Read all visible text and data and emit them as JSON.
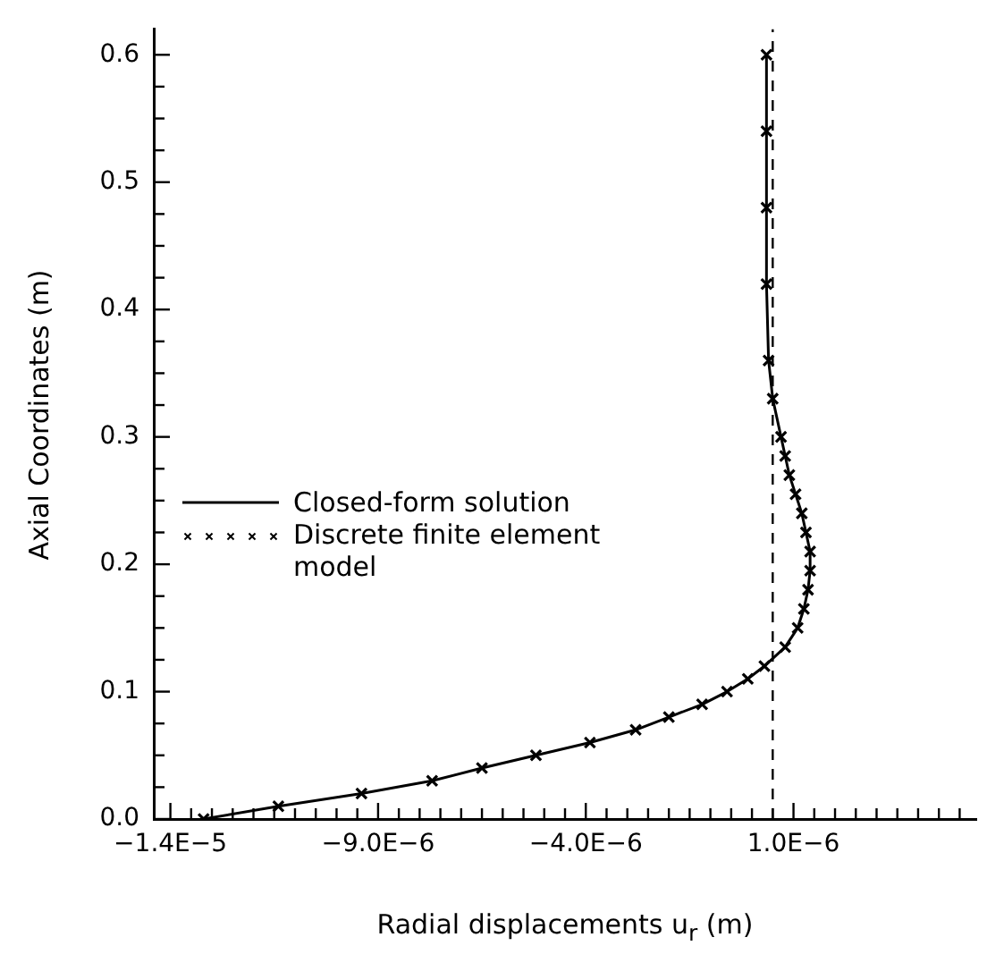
{
  "chart_data": {
    "type": "line",
    "xlabel": "Radial displacements u$_{r}$ (m)",
    "ylabel": "Axial Coordinates (m)",
    "xlim": [
      -1.44e-05,
      5.4e-06
    ],
    "ylim": [
      0,
      0.62
    ],
    "xticks": [
      {
        "value": -1.4e-05,
        "label": "−1.4E−5"
      },
      {
        "value": -1.35e-05,
        "label": null
      },
      {
        "value": -1.3e-05,
        "label": null
      },
      {
        "value": -1.25e-05,
        "label": null
      },
      {
        "value": -1.2e-05,
        "label": null
      },
      {
        "value": -1.15e-05,
        "label": null
      },
      {
        "value": -1.1e-05,
        "label": null
      },
      {
        "value": -1.05e-05,
        "label": null
      },
      {
        "value": -1e-05,
        "label": null
      },
      {
        "value": -9.5e-06,
        "label": null
      },
      {
        "value": -9e-06,
        "label": "−9.0E−6"
      },
      {
        "value": -8.5e-06,
        "label": null
      },
      {
        "value": -8e-06,
        "label": null
      },
      {
        "value": -7.5e-06,
        "label": null
      },
      {
        "value": -7e-06,
        "label": null
      },
      {
        "value": -6.5e-06,
        "label": null
      },
      {
        "value": -6e-06,
        "label": null
      },
      {
        "value": -5.5e-06,
        "label": null
      },
      {
        "value": -5e-06,
        "label": null
      },
      {
        "value": -4.5e-06,
        "label": null
      },
      {
        "value": -4e-06,
        "label": "−4.0E−6"
      },
      {
        "value": -3.5e-06,
        "label": null
      },
      {
        "value": -3e-06,
        "label": null
      },
      {
        "value": -2.5e-06,
        "label": null
      },
      {
        "value": -2e-06,
        "label": null
      },
      {
        "value": -1.5e-06,
        "label": null
      },
      {
        "value": -1e-06,
        "label": null
      },
      {
        "value": -5e-07,
        "label": null
      },
      {
        "value": 0,
        "label": null
      },
      {
        "value": 5e-07,
        "label": null
      },
      {
        "value": 1e-06,
        "label": "1.0E−6"
      },
      {
        "value": 1.5e-06,
        "label": null
      },
      {
        "value": 2e-06,
        "label": null
      },
      {
        "value": 2.5e-06,
        "label": null
      },
      {
        "value": 3e-06,
        "label": null
      },
      {
        "value": 3.5e-06,
        "label": null
      },
      {
        "value": 4e-06,
        "label": null
      },
      {
        "value": 4.5e-06,
        "label": null
      },
      {
        "value": 5e-06,
        "label": null
      }
    ],
    "yticks": [
      {
        "value": 0,
        "label": "0.0"
      },
      {
        "value": 0.025,
        "label": null
      },
      {
        "value": 0.05,
        "label": null
      },
      {
        "value": 0.075,
        "label": null
      },
      {
        "value": 0.1,
        "label": "0.1"
      },
      {
        "value": 0.125,
        "label": null
      },
      {
        "value": 0.15,
        "label": null
      },
      {
        "value": 0.175,
        "label": null
      },
      {
        "value": 0.2,
        "label": "0.2"
      },
      {
        "value": 0.225,
        "label": null
      },
      {
        "value": 0.25,
        "label": null
      },
      {
        "value": 0.275,
        "label": null
      },
      {
        "value": 0.3,
        "label": "0.3"
      },
      {
        "value": 0.325,
        "label": null
      },
      {
        "value": 0.35,
        "label": null
      },
      {
        "value": 0.375,
        "label": null
      },
      {
        "value": 0.4,
        "label": "0.4"
      },
      {
        "value": 0.425,
        "label": null
      },
      {
        "value": 0.45,
        "label": null
      },
      {
        "value": 0.475,
        "label": null
      },
      {
        "value": 0.5,
        "label": "0.5"
      },
      {
        "value": 0.525,
        "label": null
      },
      {
        "value": 0.55,
        "label": null
      },
      {
        "value": 0.575,
        "label": null
      },
      {
        "value": 0.6,
        "label": "0.6"
      }
    ],
    "grid": false,
    "legend": "left",
    "ref_lines": [
      {
        "axis": "x",
        "value": 5e-07,
        "line_style": "dashed",
        "color": "#000000"
      }
    ],
    "series": [
      {
        "name": "Closed-form solution",
        "type": "line",
        "color": "#000000",
        "marker": "none",
        "line_style": "solid",
        "x": [
          -1.32e-05,
          -1.14e-05,
          -9.4e-06,
          -7.7e-06,
          -6.5e-06,
          -5.2e-06,
          -3.9e-06,
          -2.8e-06,
          -2e-06,
          -1.2e-06,
          -6e-07,
          -1e-07,
          3e-07,
          8e-07,
          1.1e-06,
          1.25e-06,
          1.35e-06,
          1.4e-06,
          1.4e-06,
          1.3e-06,
          1.2e-06,
          1.05e-06,
          9e-07,
          8e-07,
          7e-07,
          5e-07,
          4e-07,
          3.5e-07,
          3.5e-07
        ],
        "values": [
          0,
          0.01,
          0.02,
          0.03,
          0.04,
          0.05,
          0.06,
          0.07,
          0.08,
          0.09,
          0.1,
          0.11,
          0.12,
          0.135,
          0.15,
          0.165,
          0.18,
          0.195,
          0.21,
          0.225,
          0.24,
          0.255,
          0.27,
          0.285,
          0.3,
          0.33,
          0.36,
          0.42,
          0.6
        ]
      },
      {
        "name": "Discrete finite element model",
        "type": "scatter",
        "color": "#000000",
        "marker": "cross",
        "x": [
          -1.32e-05,
          -1.14e-05,
          -9.4e-06,
          -7.7e-06,
          -6.5e-06,
          -5.2e-06,
          -3.9e-06,
          -2.8e-06,
          -2e-06,
          -1.2e-06,
          -6e-07,
          -1e-07,
          3e-07,
          8e-07,
          1.1e-06,
          1.25e-06,
          1.35e-06,
          1.4e-06,
          1.4e-06,
          1.3e-06,
          1.2e-06,
          1.05e-06,
          9e-07,
          8e-07,
          7e-07,
          5e-07,
          4e-07,
          3.5e-07,
          3.5e-07,
          3.5e-07,
          3.5e-07
        ],
        "values": [
          0,
          0.01,
          0.02,
          0.03,
          0.04,
          0.05,
          0.06,
          0.07,
          0.08,
          0.09,
          0.1,
          0.11,
          0.12,
          0.135,
          0.15,
          0.165,
          0.18,
          0.195,
          0.21,
          0.225,
          0.24,
          0.255,
          0.27,
          0.285,
          0.3,
          0.33,
          0.36,
          0.42,
          0.48,
          0.54,
          0.6
        ]
      }
    ]
  }
}
